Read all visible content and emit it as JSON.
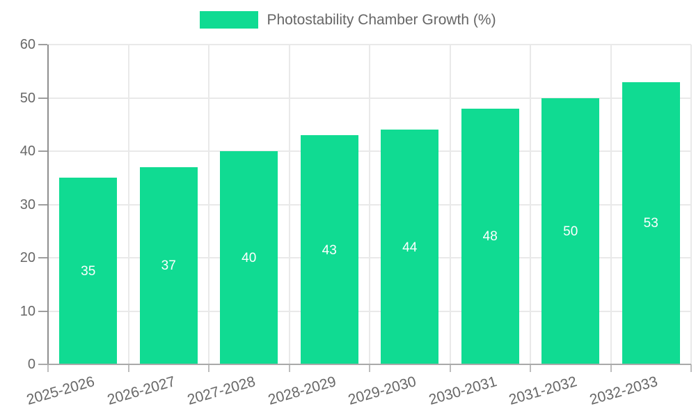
{
  "chart_data": {
    "type": "bar",
    "title": "",
    "legend": {
      "label": "Photostability Chamber Growth (%)",
      "position": "top"
    },
    "categories": [
      "2025-2026",
      "2026-2027",
      "2027-2028",
      "2028-2029",
      "2029-2030",
      "2030-2031",
      "2031-2032",
      "2032-2033"
    ],
    "values": [
      35,
      37,
      40,
      43,
      44,
      48,
      50,
      53
    ],
    "value_labels": [
      "35",
      "37",
      "40",
      "43",
      "44",
      "48",
      "50",
      "53"
    ],
    "xlabel": "",
    "ylabel": "",
    "ylim": [
      0,
      60
    ],
    "yticks": [
      0,
      10,
      20,
      30,
      40,
      50,
      60
    ],
    "grid": true,
    "colors": {
      "bar": "#10db92",
      "value_label": "#ffffff",
      "axis_text": "#686868",
      "grid_line": "#e9e9e9",
      "axis_line": "#9e9e9e",
      "background": "#ffffff"
    }
  }
}
